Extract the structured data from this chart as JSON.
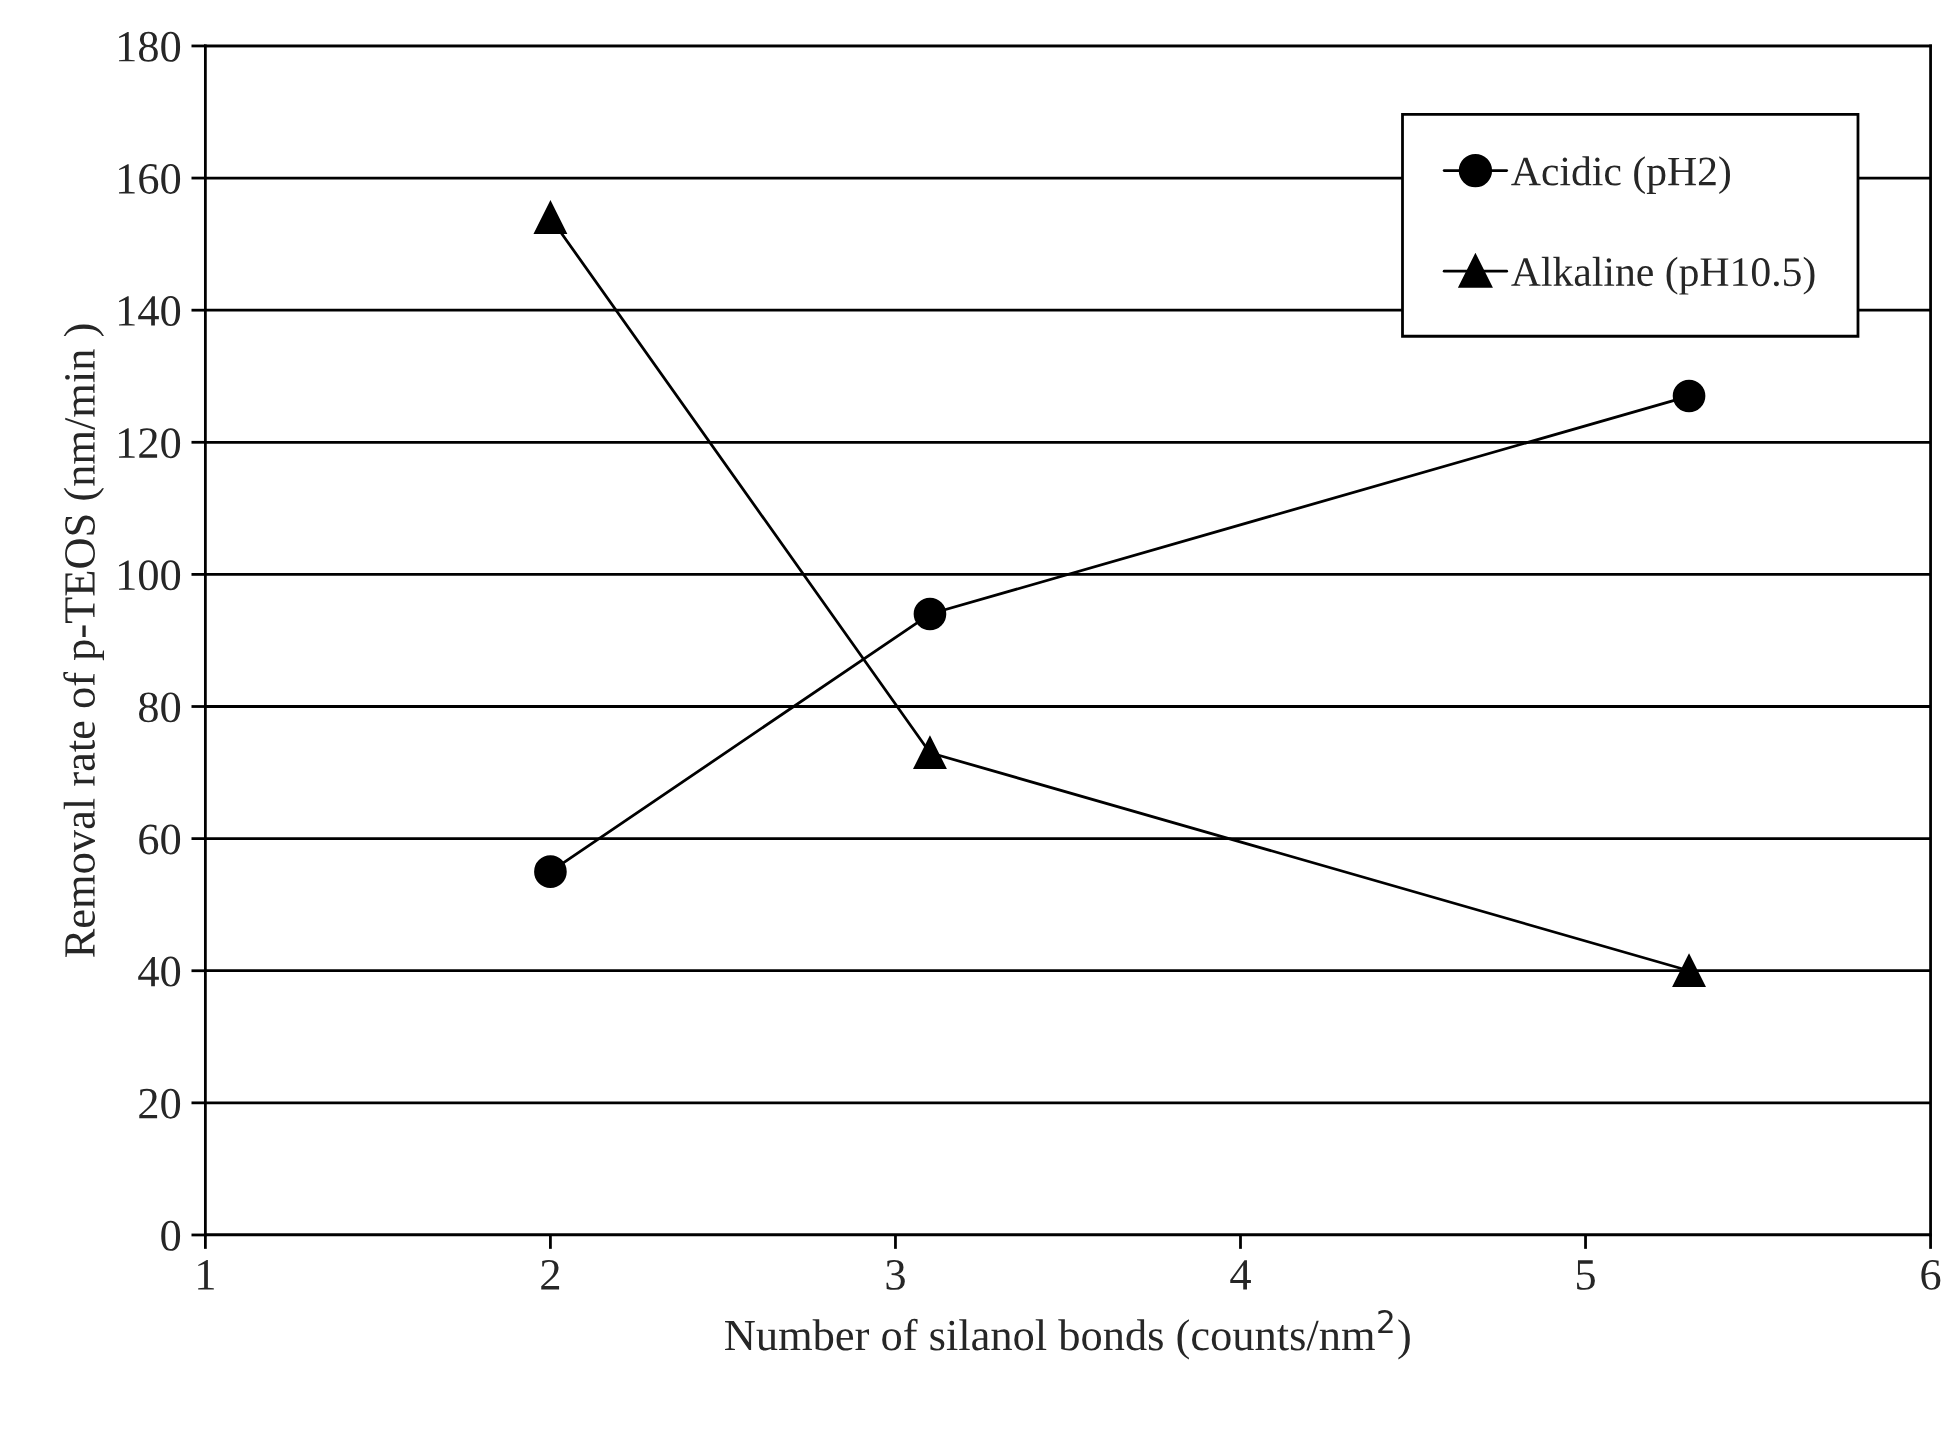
{
  "chart_data": {
    "type": "line",
    "xlabel": "Number of silanol bonds (counts/nm$^{2}$)",
    "ylabel": "Removal rate of p-TEOS (nm/min )",
    "x": [
      2,
      3.1,
      5.3
    ],
    "series": [
      {
        "name": "Acidic (pH2)",
        "color": "#000000",
        "marker": "circle",
        "values": [
          55,
          94,
          127
        ]
      },
      {
        "name": "Alkaline (pH10.5)",
        "color": "#000000",
        "marker": "triangle",
        "values": [
          154,
          73,
          40
        ]
      }
    ],
    "xlim": [
      1,
      6
    ],
    "xticks": [
      1,
      2,
      3,
      4,
      5,
      6
    ],
    "ylim": [
      0,
      180
    ],
    "yticks": [
      0,
      20,
      40,
      60,
      80,
      100,
      120,
      140,
      160,
      180
    ],
    "grid": "y",
    "legend": "top right",
    "line_style": "solid"
  }
}
